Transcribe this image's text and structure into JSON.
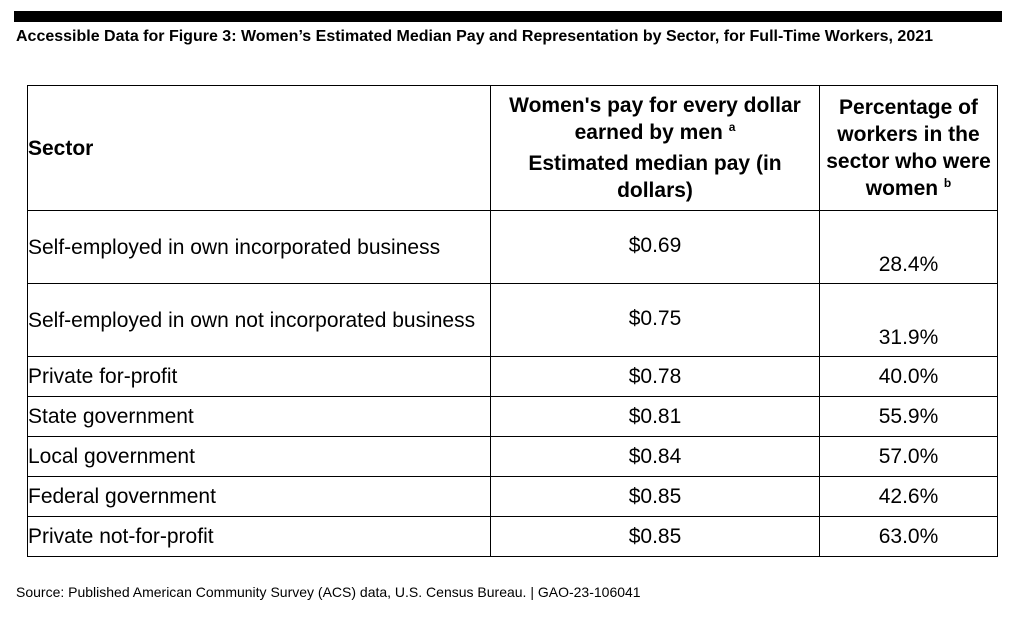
{
  "title": "Accessible Data for Figure 3: Women’s Estimated Median Pay and Representation by Sector, for Full-Time Workers, 2021",
  "table": {
    "headers": {
      "sector": "Sector",
      "pay_line1": "Women's pay for every dollar earned by men",
      "pay_note": "a",
      "pay_line2": "Estimated median pay (in dollars)",
      "pct": "Percentage of workers in the sector who were women",
      "pct_note": "b"
    },
    "rows": [
      {
        "sector": "Self-employed in own incorporated business",
        "pay": "$0.69",
        "pct": "28.4%"
      },
      {
        "sector": "Self-employed in own not incorporated business",
        "pay": "$0.75",
        "pct": "31.9%"
      },
      {
        "sector": "Private for-profit",
        "pay": "$0.78",
        "pct": "40.0%"
      },
      {
        "sector": "State government",
        "pay": "$0.81",
        "pct": "55.9%"
      },
      {
        "sector": "Local government",
        "pay": "$0.84",
        "pct": "57.0%"
      },
      {
        "sector": "Federal government",
        "pay": "$0.85",
        "pct": "42.6%"
      },
      {
        "sector": "Private not-for-profit",
        "pay": "$0.85",
        "pct": "63.0%"
      }
    ]
  },
  "source": "Source: Published American Community Survey (ACS) data, U.S. Census Bureau.  |  GAO-23-106041"
}
